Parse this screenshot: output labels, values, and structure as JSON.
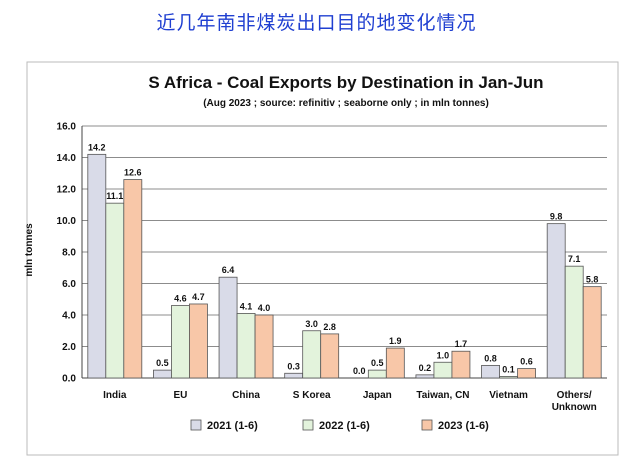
{
  "header": {
    "title": "近几年南非煤炭出口目的地变化情况"
  },
  "chart_data": {
    "type": "bar",
    "title": "S Africa - Coal Exports by Destination in Jan-Jun",
    "subtitle": "(Aug 2023 ; source: refinitiv ; seaborne only ; in mln tonnes)",
    "ylabel": "mln tonnes",
    "xlabel": "",
    "ylim": [
      0,
      16
    ],
    "yticks": [
      "0.0",
      "2.0",
      "4.0",
      "6.0",
      "8.0",
      "10.0",
      "12.0",
      "14.0",
      "16.0"
    ],
    "grid": true,
    "legend_position": "bottom",
    "categories": [
      "India",
      "EU",
      "China",
      "S Korea",
      "Japan",
      "Taiwan, CN",
      "Vietnam",
      "Others/\nUnknown"
    ],
    "series": [
      {
        "name": "2021 (1-6)",
        "color": "#d9dbe8",
        "values": [
          14.2,
          0.5,
          6.4,
          0.3,
          0.0,
          0.2,
          0.8,
          9.8
        ],
        "labels": [
          "14.2",
          "0.5",
          "6.4",
          "0.3",
          "0.0",
          "0.2",
          "0.8",
          "9.8"
        ]
      },
      {
        "name": "2022 (1-6)",
        "color": "#e3f3dc",
        "values": [
          11.1,
          4.6,
          4.1,
          3.0,
          0.5,
          1.0,
          0.1,
          7.1
        ],
        "labels": [
          "11.1",
          "4.6",
          "4.1",
          "3.0",
          "0.5",
          "1.0",
          "0.1",
          "7.1"
        ]
      },
      {
        "name": "2023 (1-6)",
        "color": "#f8c7a8",
        "values": [
          12.6,
          4.7,
          4.0,
          2.8,
          1.9,
          1.7,
          0.6,
          5.8
        ],
        "labels": [
          "12.6",
          "4.7",
          "4.0",
          "2.8",
          "1.9",
          "1.7",
          "0.6",
          "5.8"
        ]
      }
    ]
  }
}
